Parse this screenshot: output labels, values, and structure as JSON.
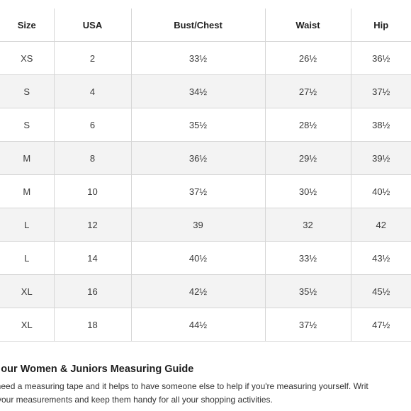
{
  "size_chart": {
    "columns": [
      "Size",
      "USA",
      "Bust/Chest",
      "Waist",
      "Hip"
    ],
    "rows": [
      [
        "XS",
        "2",
        "33½",
        "26½",
        "36½"
      ],
      [
        "S",
        "4",
        "34½",
        "27½",
        "37½"
      ],
      [
        "S",
        "6",
        "35½",
        "28½",
        "38½"
      ],
      [
        "M",
        "8",
        "36½",
        "29½",
        "39½"
      ],
      [
        "M",
        "10",
        "37½",
        "30½",
        "40½"
      ],
      [
        "L",
        "12",
        "39",
        "32",
        "42"
      ],
      [
        "L",
        "14",
        "40½",
        "33½",
        "43½"
      ],
      [
        "XL",
        "16",
        "42½",
        "35½",
        "45½"
      ],
      [
        "XL",
        "18",
        "44½",
        "37½",
        "47½"
      ]
    ]
  },
  "guide": {
    "title": "w our Women & Juniors Measuring Guide",
    "line1": "ll need a measuring tape and it helps to have someone else to help if you're measuring yourself. Writ",
    "line2": "n your measurements and keep them handy for all your shopping activities."
  }
}
